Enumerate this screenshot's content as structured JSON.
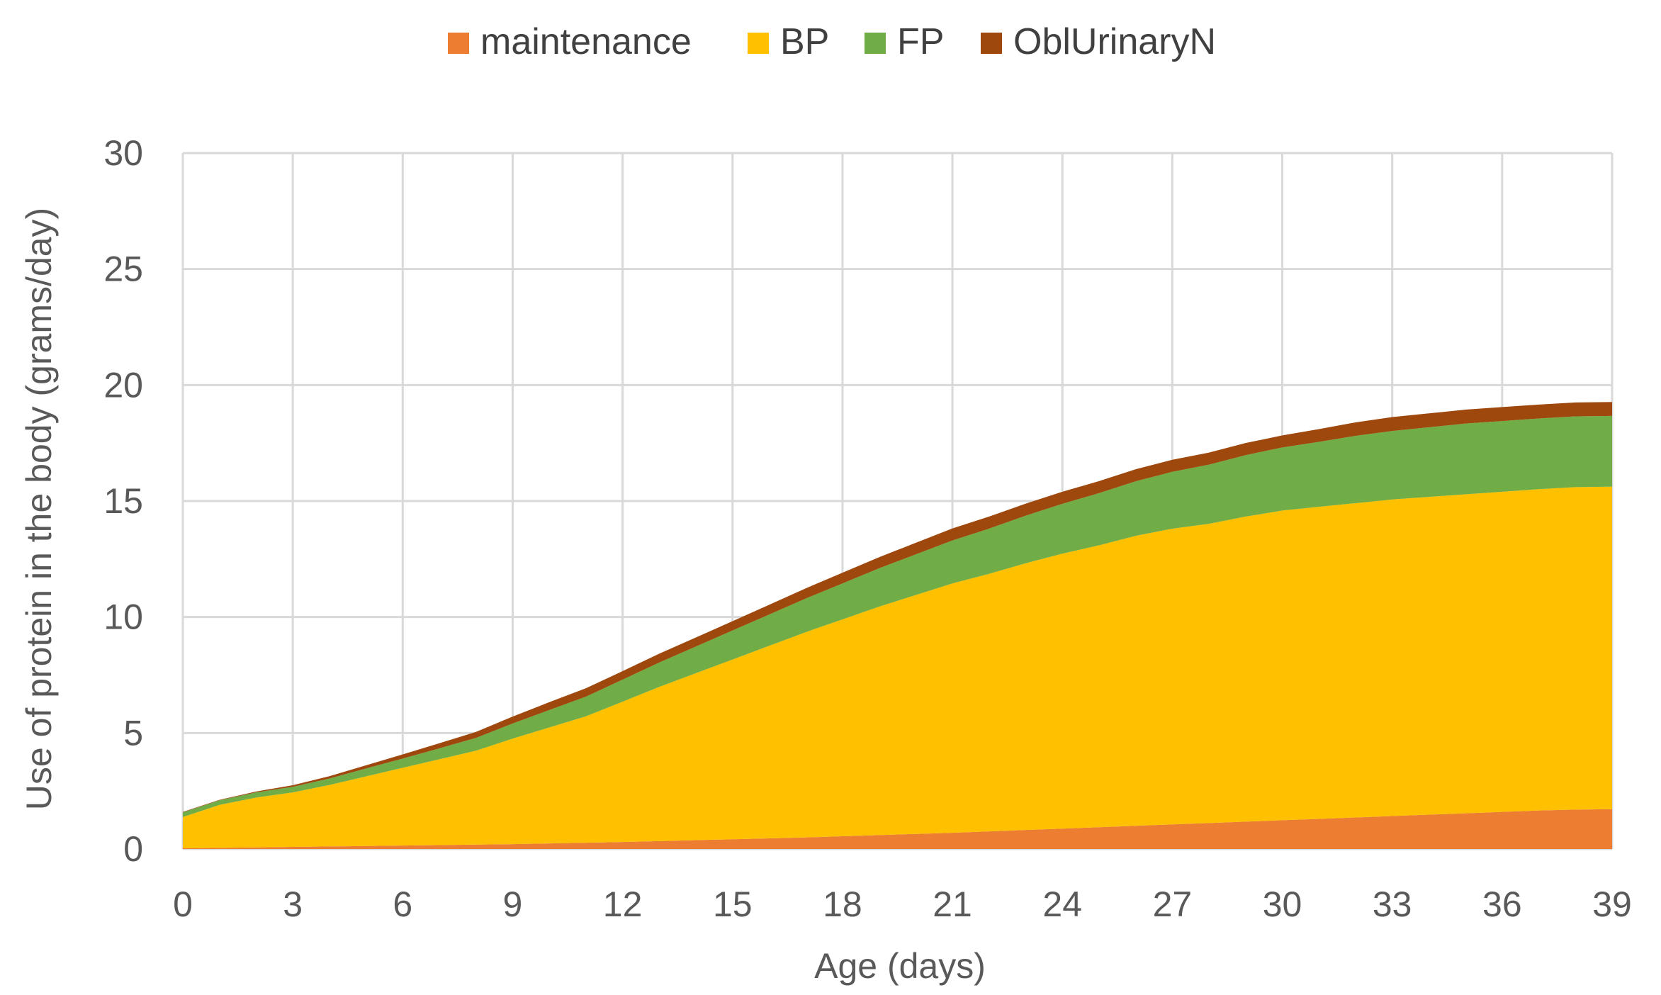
{
  "chart_data": {
    "type": "area",
    "stacked": true,
    "title": "",
    "xlabel": "Age (days)",
    "ylabel": "Use of protein in the body (grams/day)",
    "xlim": [
      0,
      39
    ],
    "ylim": [
      0,
      30
    ],
    "x_ticks": [
      0,
      3,
      6,
      9,
      12,
      15,
      18,
      21,
      24,
      27,
      30,
      33,
      36,
      39
    ],
    "y_ticks": [
      0,
      5,
      10,
      15,
      20,
      25,
      30
    ],
    "grid": true,
    "legend_position": "top",
    "x": [
      0,
      1,
      2,
      3,
      4,
      5,
      6,
      7,
      8,
      9,
      10,
      11,
      12,
      13,
      14,
      15,
      16,
      17,
      18,
      19,
      20,
      21,
      22,
      23,
      24,
      25,
      26,
      27,
      28,
      29,
      30,
      31,
      32,
      33,
      34,
      35,
      36,
      37,
      38,
      39
    ],
    "series": [
      {
        "name": "maintenance",
        "color": "#ED7D31",
        "values": [
          0.03,
          0.05,
          0.07,
          0.09,
          0.11,
          0.13,
          0.15,
          0.17,
          0.19,
          0.21,
          0.24,
          0.27,
          0.3,
          0.34,
          0.38,
          0.42,
          0.46,
          0.5,
          0.55,
          0.6,
          0.65,
          0.7,
          0.76,
          0.82,
          0.88,
          0.94,
          1.0,
          1.06,
          1.12,
          1.18,
          1.24,
          1.3,
          1.36,
          1.42,
          1.48,
          1.54,
          1.6,
          1.66,
          1.7,
          1.72
        ]
      },
      {
        "name": "BP",
        "color": "#FFC000",
        "values": [
          1.35,
          1.85,
          2.15,
          2.35,
          2.65,
          3.0,
          3.35,
          3.7,
          4.05,
          4.55,
          5.0,
          5.45,
          6.05,
          6.65,
          7.2,
          7.75,
          8.3,
          8.85,
          9.35,
          9.85,
          10.3,
          10.75,
          11.1,
          11.5,
          11.85,
          12.15,
          12.5,
          12.75,
          12.9,
          13.15,
          13.35,
          13.45,
          13.55,
          13.65,
          13.7,
          13.75,
          13.8,
          13.85,
          13.9,
          13.9
        ]
      },
      {
        "name": "FP",
        "color": "#70AD47",
        "values": [
          0.2,
          0.2,
          0.22,
          0.24,
          0.28,
          0.34,
          0.4,
          0.47,
          0.55,
          0.65,
          0.75,
          0.85,
          0.95,
          1.05,
          1.15,
          1.25,
          1.35,
          1.45,
          1.55,
          1.65,
          1.75,
          1.85,
          1.95,
          2.05,
          2.15,
          2.25,
          2.35,
          2.45,
          2.55,
          2.65,
          2.72,
          2.8,
          2.9,
          2.95,
          3.0,
          3.05,
          3.05,
          3.05,
          3.05,
          3.05
        ]
      },
      {
        "name": "OblUrinaryN",
        "color": "#9E480E",
        "values": [
          0.02,
          0.02,
          0.04,
          0.07,
          0.1,
          0.14,
          0.18,
          0.22,
          0.26,
          0.3,
          0.34,
          0.36,
          0.37,
          0.38,
          0.39,
          0.4,
          0.42,
          0.44,
          0.46,
          0.48,
          0.5,
          0.52,
          0.52,
          0.52,
          0.52,
          0.52,
          0.52,
          0.52,
          0.52,
          0.52,
          0.52,
          0.55,
          0.58,
          0.6,
          0.6,
          0.6,
          0.6,
          0.6,
          0.6,
          0.6
        ]
      }
    ]
  }
}
